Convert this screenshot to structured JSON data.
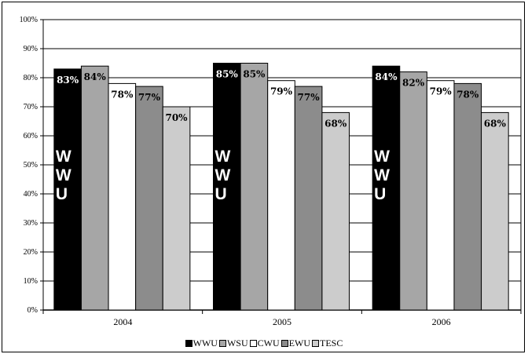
{
  "chart_data": {
    "type": "bar",
    "categories": [
      "2004",
      "2005",
      "2006"
    ],
    "series": [
      {
        "name": "WWU",
        "values": [
          83,
          85,
          84
        ],
        "color": "#000000"
      },
      {
        "name": "WSU",
        "values": [
          84,
          85,
          82
        ],
        "color": "#a6a6a6"
      },
      {
        "name": "CWU",
        "values": [
          78,
          79,
          79
        ],
        "color": "#ffffff"
      },
      {
        "name": "EWU",
        "values": [
          77,
          77,
          78
        ],
        "color": "#8c8c8c"
      },
      {
        "name": "TESC",
        "values": [
          70,
          68,
          68
        ],
        "color": "#cccccc"
      }
    ],
    "data_labels": [
      [
        "83%",
        "84%",
        "78%",
        "77%",
        "70%"
      ],
      [
        "85%",
        "85%",
        "79%",
        "77%",
        "68%"
      ],
      [
        "84%",
        "82%",
        "79%",
        "78%",
        "68%"
      ]
    ],
    "bar_annotation": [
      "W",
      "W",
      "U"
    ],
    "y_ticks": [
      "0%",
      "10%",
      "20%",
      "30%",
      "40%",
      "50%",
      "60%",
      "70%",
      "80%",
      "90%",
      "100%"
    ],
    "ylim": [
      0,
      100
    ],
    "grid": true,
    "legend_position": "bottom"
  }
}
